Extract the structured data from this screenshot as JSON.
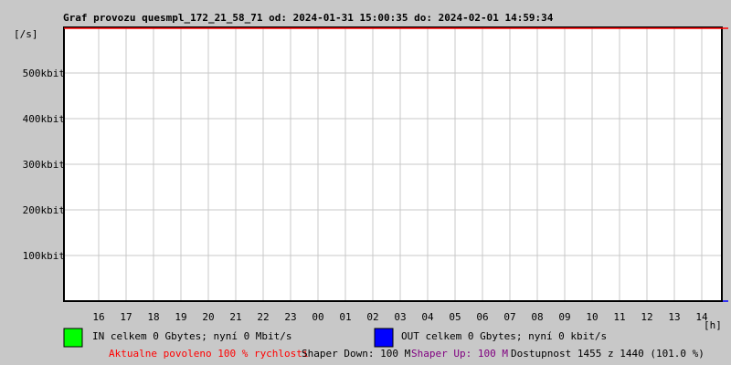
{
  "chart_data": {
    "type": "line",
    "title": "Graf provozu quesmpl_172_21_58_71 od: 2024-01-31 15:00:35 do: 2024-02-01 14:59:34",
    "ylabel": "[/s]",
    "xlabel": "[h]",
    "ylim": [
      0,
      600
    ],
    "y_unit": "kbit",
    "yticks": [
      {
        "value": 100,
        "label": "100kbit"
      },
      {
        "value": 200,
        "label": "200kbit"
      },
      {
        "value": 300,
        "label": "300kbit"
      },
      {
        "value": 400,
        "label": "400kbit"
      },
      {
        "value": 500,
        "label": "500kbit"
      }
    ],
    "categories": [
      "16",
      "17",
      "18",
      "19",
      "20",
      "21",
      "22",
      "23",
      "00",
      "01",
      "02",
      "03",
      "04",
      "05",
      "06",
      "07",
      "08",
      "09",
      "10",
      "11",
      "12",
      "13",
      "14"
    ],
    "grid": true,
    "series": [
      {
        "name": "IN",
        "color": "#00ff00",
        "values": [
          0,
          0,
          0,
          0,
          0,
          0,
          0,
          0,
          0,
          0,
          0,
          0,
          0,
          0,
          0,
          0,
          0,
          0,
          0,
          0,
          0,
          0,
          0
        ]
      },
      {
        "name": "OUT",
        "color": "#0000ff",
        "values": [
          0,
          0,
          0,
          0,
          0,
          0,
          0,
          0,
          0,
          0,
          0,
          0,
          0,
          0,
          0,
          0,
          0,
          0,
          0,
          0,
          0,
          0,
          0
        ]
      }
    ],
    "limit_line_color": "#ff0000"
  },
  "legend": {
    "in_text": "IN celkem 0 Gbytes; nyní 0 Mbit/s",
    "out_text": "OUT celkem 0 Gbytes; nyní 0 kbit/s",
    "in_color": "#00ff00",
    "out_color": "#0000ff"
  },
  "footer": {
    "allowed": "Aktualne povoleno 100 % rychlosti",
    "shaper_down": "Shaper Down: 100 M",
    "shaper_up": "Shaper Up: 100 M",
    "availability": "Dostupnost 1455 z 1440 (101.0 %)",
    "allowed_color": "#ff0000",
    "shaper_up_color": "#800080"
  }
}
